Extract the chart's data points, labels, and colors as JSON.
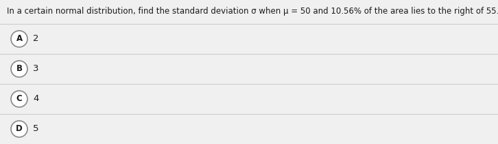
{
  "question": "In a certain normal distribution, find the standard deviation σ when μ = 50 and 10.56% of the area lies to the right of 55.",
  "options": [
    {
      "label": "A",
      "value": "2"
    },
    {
      "label": "B",
      "value": "3"
    },
    {
      "label": "C",
      "value": "4"
    },
    {
      "label": "D",
      "value": "5"
    }
  ],
  "bg_color": "#f0f0f0",
  "white_color": "#ffffff",
  "divider_color": "#cccccc",
  "question_font_size": 8.5,
  "option_font_size": 9.5,
  "label_font_size": 8.5,
  "text_color": "#1a1a1a",
  "circle_edge_color": "#888888",
  "fig_width": 7.26,
  "fig_height": 2.11,
  "dpi": 100
}
